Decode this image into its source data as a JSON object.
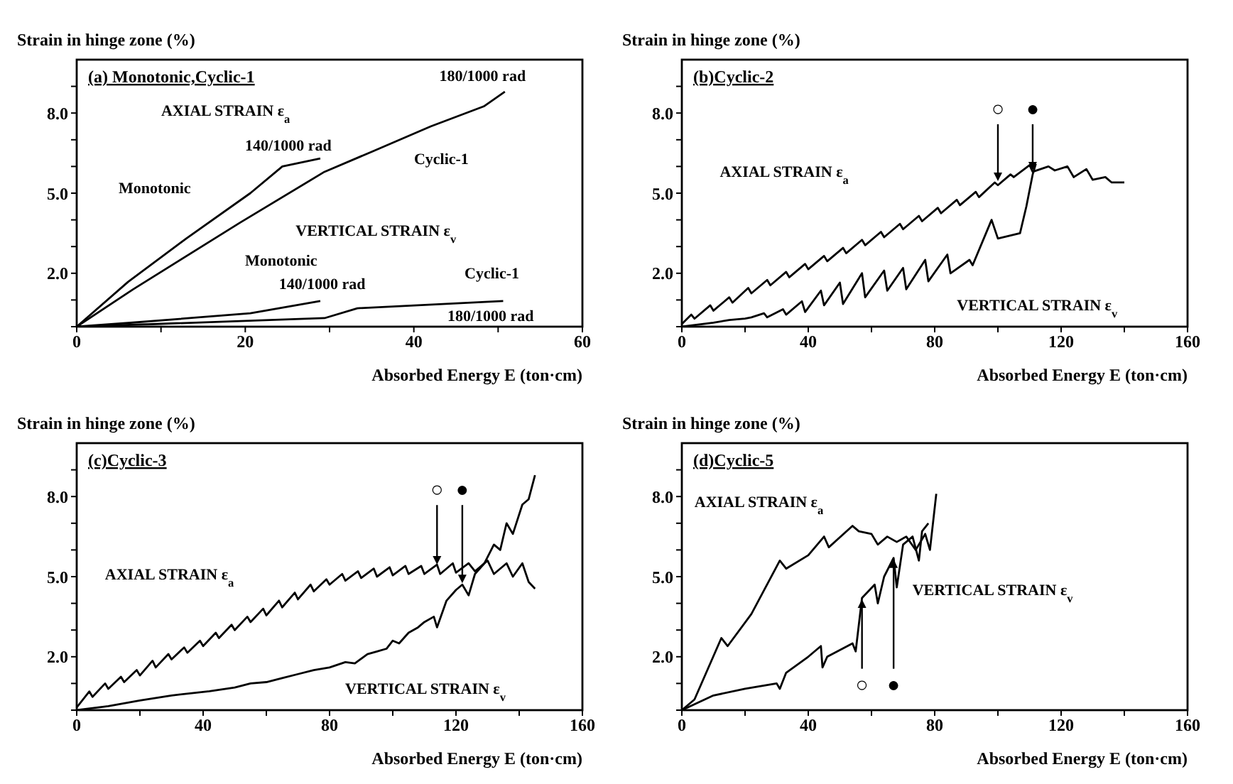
{
  "chart_data": [
    {
      "type": "line",
      "title": "(a) Monotonic,Cyclic-1",
      "xlabel": "Absorbed Energy E (ton·cm)",
      "ylabel": "Strain in hinge zone (%)",
      "xlim": [
        0,
        60
      ],
      "xticks": [
        0,
        {
          "value": 10,
          "label": null
        },
        20,
        {
          "value": 30,
          "label": null
        },
        40,
        {
          "value": 50,
          "label": null
        },
        60
      ],
      "ylim": [
        0,
        10
      ],
      "yticks": [
        {
          "value": 0,
          "label": null
        },
        {
          "value": 1,
          "label": null
        },
        {
          "value": 2,
          "label": "2.0"
        },
        {
          "value": 3,
          "label": null
        },
        {
          "value": 4,
          "label": null
        },
        {
          "value": 5,
          "label": "5.0"
        },
        {
          "value": 6,
          "label": null
        },
        {
          "value": 7,
          "label": null
        },
        {
          "value": 8,
          "label": "8.0"
        },
        {
          "value": 9,
          "label": null
        }
      ],
      "marker": "none",
      "line_style": "solid",
      "series": [
        {
          "color": "#000000",
          "x": [
            0,
            6.1,
            13,
            20.6,
            24.4,
            28.9
          ],
          "values": [
            0,
            1.68,
            3.3,
            5.0,
            6.0,
            6.3
          ]
        },
        {
          "color": "#000000",
          "x": [
            0,
            6.7,
            19.4,
            29.4,
            35,
            42,
            48.3,
            50.8
          ],
          "values": [
            0,
            1.4,
            3.9,
            5.8,
            6.55,
            7.5,
            8.25,
            8.8
          ]
        },
        {
          "color": "#000000",
          "x": [
            0,
            6.1,
            20.6,
            28.9
          ],
          "values": [
            0,
            0.14,
            0.5,
            0.96
          ]
        },
        {
          "color": "#000000",
          "x": [
            0,
            9.4,
            29.4,
            33.3,
            50.6
          ],
          "values": [
            0,
            0.1,
            0.32,
            0.69,
            0.96
          ]
        }
      ],
      "annotations": [
        "AXIAL STRAIN ε$_{a}$",
        "Monotonic",
        "140/1000 rad",
        "Cyclic-1",
        "180/1000 rad",
        "VERTICAL STRAIN ε$_{v}$",
        "Monotonic",
        "140/1000 rad",
        "Cyclic-1",
        "180/1000 rad"
      ]
    },
    {
      "type": "line",
      "title": "(b)Cyclic-2",
      "xlabel": "Absorbed Energy E (ton·cm)",
      "ylabel": "Strain in hinge zone (%)",
      "xlim": [
        0,
        160
      ],
      "xticks": [
        0,
        {
          "value": 20,
          "label": null
        },
        40,
        {
          "value": 60,
          "label": null
        },
        80,
        {
          "value": 100,
          "label": null
        },
        120,
        {
          "value": 140,
          "label": null
        },
        160
      ],
      "ylim": [
        0,
        10
      ],
      "yticks": [
        {
          "value": 0,
          "label": null
        },
        {
          "value": 1,
          "label": null
        },
        {
          "value": 2,
          "label": "2.0"
        },
        {
          "value": 3,
          "label": null
        },
        {
          "value": 4,
          "label": null
        },
        {
          "value": 5,
          "label": "5.0"
        },
        {
          "value": 6,
          "label": null
        },
        {
          "value": 7,
          "label": null
        },
        {
          "value": 8,
          "label": "8.0"
        },
        {
          "value": 9,
          "label": null
        }
      ],
      "marker": "none",
      "line_style": "solid",
      "series": [
        {
          "color": "#000000",
          "x": [
            0,
            3,
            4,
            9,
            10,
            15,
            16,
            21,
            22,
            27,
            28,
            33,
            34,
            39,
            40,
            45,
            46,
            51,
            52,
            57,
            58,
            63,
            64,
            69,
            70,
            75,
            76,
            81,
            82,
            87,
            88,
            93,
            94,
            99,
            100,
            104,
            105,
            110,
            111,
            116,
            118,
            122,
            124,
            128,
            130,
            134,
            136,
            140
          ],
          "values": [
            0.1,
            0.45,
            0.3,
            0.8,
            0.6,
            1.1,
            0.9,
            1.45,
            1.25,
            1.75,
            1.55,
            2.05,
            1.85,
            2.35,
            2.15,
            2.65,
            2.45,
            2.95,
            2.75,
            3.25,
            3.05,
            3.55,
            3.35,
            3.85,
            3.65,
            4.15,
            3.95,
            4.45,
            4.25,
            4.75,
            4.55,
            5.05,
            4.85,
            5.4,
            5.3,
            5.7,
            5.6,
            6.05,
            5.8,
            6.0,
            5.85,
            6.0,
            5.6,
            5.9,
            5.5,
            5.6,
            5.4,
            5.4
          ]
        },
        {
          "color": "#000000",
          "x": [
            0,
            10,
            15,
            20,
            22,
            26,
            27,
            32,
            33,
            38,
            39,
            44,
            45,
            50,
            51,
            57,
            58,
            64,
            65,
            70,
            71,
            77,
            78,
            84,
            85,
            91,
            92,
            98,
            100,
            107,
            109,
            111,
            112
          ],
          "values": [
            0,
            0.15,
            0.25,
            0.3,
            0.35,
            0.5,
            0.35,
            0.65,
            0.45,
            0.95,
            0.55,
            1.35,
            0.8,
            1.65,
            0.85,
            2.0,
            1.1,
            2.1,
            1.35,
            2.2,
            1.4,
            2.5,
            1.7,
            2.7,
            2.0,
            2.5,
            2.3,
            4.0,
            3.3,
            3.5,
            4.5,
            5.7,
            6.1
          ]
        }
      ],
      "annotations": [
        "AXIAL STRAIN ε$_{a}$",
        "VERTICAL STRAIN ε$_{v}$",
        {
          "text": "○",
          "x": 100,
          "y": 5.4
        },
        {
          "text": "●",
          "x": 111,
          "y": 5.8
        }
      ]
    },
    {
      "type": "line",
      "title": "(c)Cyclic-3",
      "xlabel": "Absorbed Energy E (ton·cm)",
      "ylabel": "Strain in hinge zone (%)",
      "xlim": [
        0,
        160
      ],
      "xticks": [
        0,
        {
          "value": 20,
          "label": null
        },
        40,
        {
          "value": 60,
          "label": null
        },
        80,
        {
          "value": 100,
          "label": null
        },
        120,
        {
          "value": 140,
          "label": null
        },
        160
      ],
      "ylim": [
        0,
        10
      ],
      "yticks": [
        {
          "value": 0,
          "label": null
        },
        {
          "value": 1,
          "label": null
        },
        {
          "value": 2,
          "label": "2.0"
        },
        {
          "value": 3,
          "label": null
        },
        {
          "value": 4,
          "label": null
        },
        {
          "value": 5,
          "label": "5.0"
        },
        {
          "value": 6,
          "label": null
        },
        {
          "value": 7,
          "label": null
        },
        {
          "value": 8,
          "label": "8.0"
        },
        {
          "value": 9,
          "label": null
        }
      ],
      "marker": "none",
      "line_style": "solid",
      "series": [
        {
          "color": "#000000",
          "x": [
            0,
            4,
            5,
            9,
            10,
            14,
            15,
            19,
            20,
            24,
            25,
            29,
            30,
            34,
            35,
            39,
            40,
            44,
            45,
            49,
            50,
            54,
            55,
            59,
            60,
            64,
            65,
            69,
            70,
            74,
            75,
            79,
            80,
            84,
            85,
            89,
            90,
            94,
            95,
            99,
            100,
            104,
            105,
            109,
            110,
            114,
            115,
            119,
            120,
            124,
            126,
            130,
            132,
            136,
            138,
            141,
            143,
            145
          ],
          "values": [
            0.1,
            0.7,
            0.5,
            1.0,
            0.8,
            1.25,
            1.05,
            1.5,
            1.3,
            1.85,
            1.6,
            2.1,
            1.9,
            2.35,
            2.15,
            2.6,
            2.4,
            2.9,
            2.7,
            3.2,
            3.0,
            3.5,
            3.3,
            3.8,
            3.55,
            4.1,
            3.85,
            4.4,
            4.15,
            4.7,
            4.45,
            4.9,
            4.7,
            5.1,
            4.85,
            5.2,
            4.95,
            5.3,
            5.0,
            5.35,
            5.05,
            5.4,
            5.1,
            5.4,
            5.1,
            5.45,
            5.1,
            5.5,
            5.15,
            5.5,
            5.2,
            5.6,
            5.1,
            5.5,
            5.0,
            5.5,
            4.8,
            4.55
          ]
        },
        {
          "color": "#000000",
          "x": [
            0,
            10,
            20,
            30,
            42,
            50,
            55,
            60,
            65,
            70,
            75,
            80,
            85,
            88,
            92,
            95,
            98,
            100,
            102,
            105,
            108,
            110,
            113,
            114,
            117,
            120,
            122,
            124,
            126,
            129,
            132,
            134,
            136,
            138,
            141,
            143,
            145
          ],
          "values": [
            0,
            0.15,
            0.36,
            0.55,
            0.71,
            0.85,
            1.0,
            1.05,
            1.2,
            1.35,
            1.5,
            1.6,
            1.8,
            1.75,
            2.1,
            2.2,
            2.3,
            2.6,
            2.5,
            2.9,
            3.1,
            3.3,
            3.5,
            3.1,
            4.1,
            4.5,
            4.7,
            4.3,
            5.1,
            5.5,
            6.2,
            6.0,
            7.0,
            6.6,
            7.7,
            7.9,
            8.8
          ]
        }
      ],
      "annotations": [
        "AXIAL STRAIN ε$_{a}$",
        "VERTICAL STRAIN ε$_{v}$",
        {
          "text": "○",
          "x": 114,
          "y": 5.4
        },
        {
          "text": "●",
          "x": 122,
          "y": 4.7
        }
      ]
    },
    {
      "type": "line",
      "title": "(d)Cyclic-5",
      "xlabel": "Absorbed Energy E (ton·cm)",
      "ylabel": "Strain in hinge zone (%)",
      "xlim": [
        0,
        160
      ],
      "xticks": [
        0,
        {
          "value": 20,
          "label": null
        },
        40,
        {
          "value": 60,
          "label": null
        },
        80,
        {
          "value": 100,
          "label": null
        },
        120,
        {
          "value": 140,
          "label": null
        },
        160
      ],
      "ylim": [
        0,
        10
      ],
      "yticks": [
        {
          "value": 0,
          "label": null
        },
        {
          "value": 1,
          "label": null
        },
        {
          "value": 2,
          "label": "2.0"
        },
        {
          "value": 3,
          "label": null
        },
        {
          "value": 4,
          "label": null
        },
        {
          "value": 5,
          "label": "5.0"
        },
        {
          "value": 6,
          "label": null
        },
        {
          "value": 7,
          "label": null
        },
        {
          "value": 8,
          "label": "8.0"
        },
        {
          "value": 9,
          "label": null
        }
      ],
      "marker": "none",
      "line_style": "solid",
      "series": [
        {
          "color": "#000000",
          "x": [
            0,
            4,
            12.5,
            14.5,
            22,
            31,
            33,
            40,
            45,
            46.5,
            54,
            56,
            60,
            62,
            65,
            68,
            71,
            74,
            77,
            78.5,
            80.5
          ],
          "values": [
            0,
            0.4,
            2.7,
            2.4,
            3.6,
            5.6,
            5.3,
            5.8,
            6.5,
            6.1,
            6.9,
            6.7,
            6.6,
            6.2,
            6.5,
            6.3,
            6.5,
            6.0,
            6.6,
            6.0,
            8.1
          ]
        },
        {
          "color": "#000000",
          "x": [
            0,
            10,
            20,
            30,
            31,
            33,
            40,
            44,
            44.5,
            46,
            54,
            55,
            57,
            61,
            62,
            64,
            67,
            68,
            70,
            73,
            75,
            76,
            78
          ],
          "values": [
            0,
            0.55,
            0.8,
            1.0,
            0.8,
            1.4,
            2.0,
            2.4,
            1.6,
            2.0,
            2.5,
            2.2,
            4.2,
            4.7,
            4.0,
            5.0,
            5.7,
            4.6,
            6.2,
            6.5,
            5.6,
            6.7,
            7.0
          ]
        }
      ],
      "annotations": [
        "AXIAL STRAIN ε$_{a}$",
        "VERTICAL STRAIN ε$_{v}$",
        {
          "text": "○",
          "x": 57,
          "y": 4.2
        },
        {
          "text": "●",
          "x": 67,
          "y": 5.7
        }
      ]
    }
  ]
}
